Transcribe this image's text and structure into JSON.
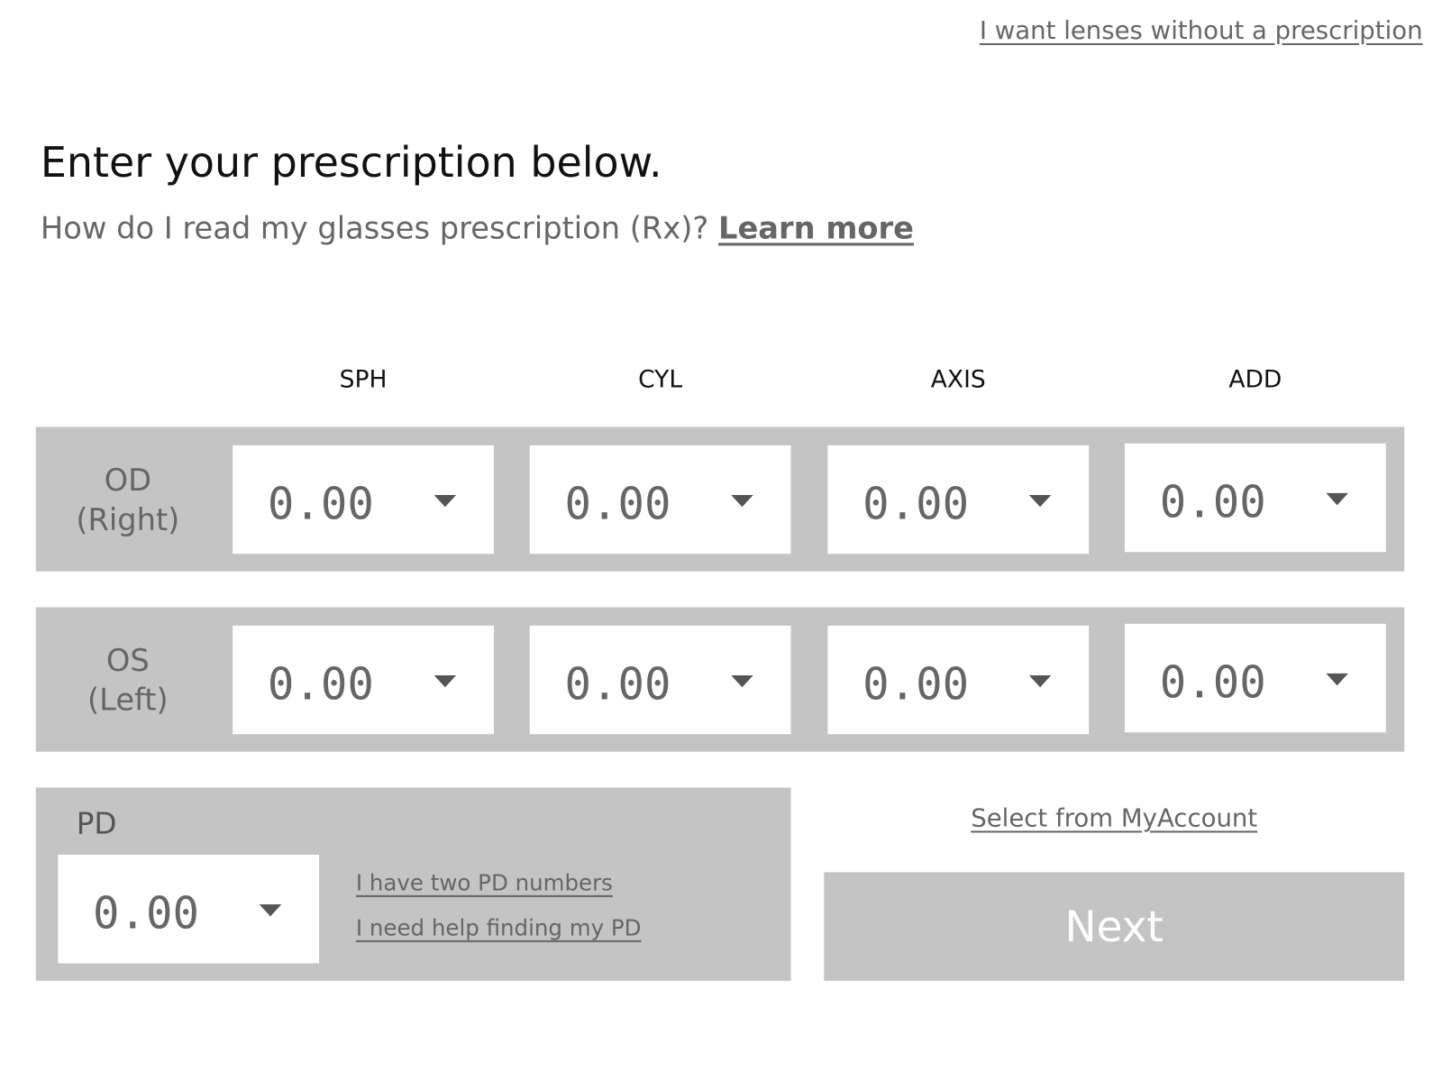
{
  "top_link": "I want lenses without a prescription",
  "title": "Enter your prescription below.",
  "subtitle": "How do I read my glasses prescription (Rx)?",
  "learn_more": "Learn more",
  "columns": [
    "SPH",
    "CYL",
    "AXIS",
    "ADD"
  ],
  "rows": [
    {
      "eye": "OD",
      "eye_sub": "(Right)",
      "values": [
        "0.00",
        "0.00",
        "0.00",
        "0.00"
      ]
    },
    {
      "eye": "OS",
      "eye_sub": "(Left)",
      "values": [
        "0.00",
        "0.00",
        "0.00",
        "0.00"
      ]
    }
  ],
  "pd": {
    "label": "PD",
    "value": "0.00",
    "link_two": "I have two PD numbers",
    "link_help": "I need help finding my PD"
  },
  "myaccount": "Select from MyAccount",
  "next": "Next",
  "colors": {
    "panel": "#c4c4c4",
    "text_muted": "#666666"
  }
}
